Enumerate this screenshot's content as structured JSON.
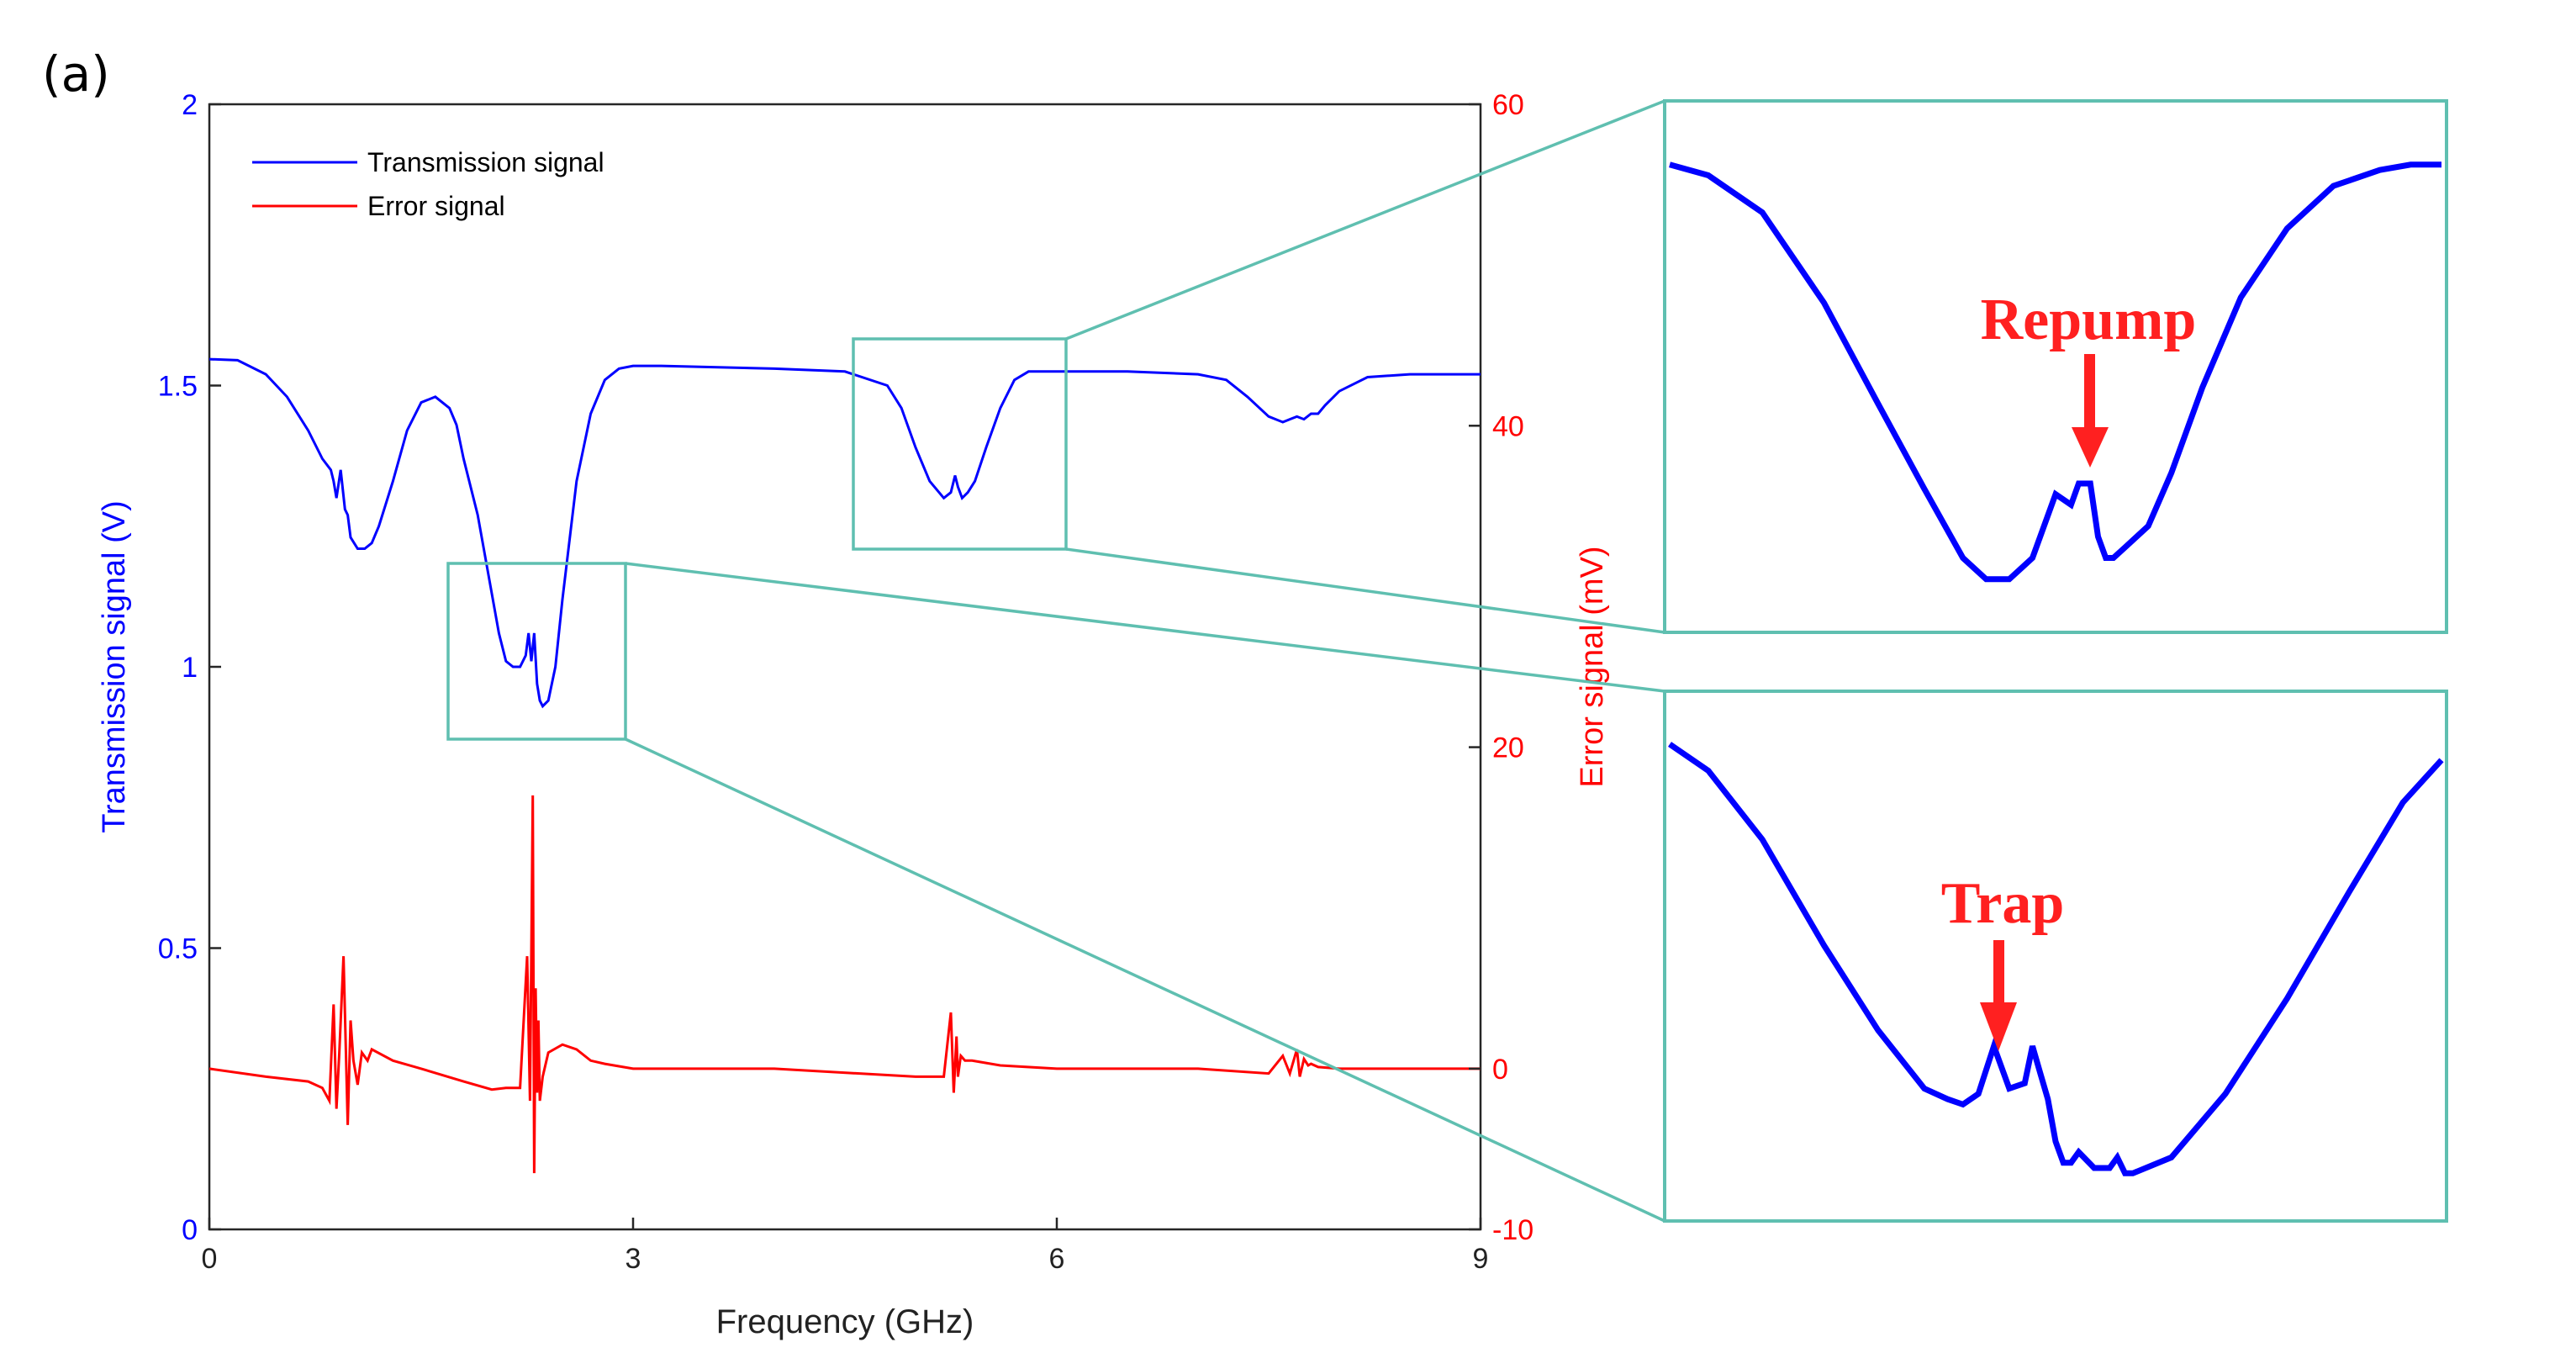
{
  "panel_label": "(a)",
  "colors": {
    "transmission": "#0000ff",
    "error": "#ff0000",
    "zoom_box": "#5fbfb0",
    "annotation": "#ff2020"
  },
  "chart_data": [
    {
      "type": "line",
      "xlabel": "Frequency (GHz)",
      "ylabel": "Transmission signal (V)",
      "ylabel_right": "Error signal (mV)",
      "xlim": [
        0,
        9
      ],
      "ylim": [
        0,
        2
      ],
      "ylim_right": [
        -10,
        60
      ],
      "x_ticks": [
        "0",
        "3",
        "6",
        "9"
      ],
      "y_ticks": [
        "0",
        "0.5",
        "1",
        "1.5",
        "2"
      ],
      "y_ticks_right": [
        "-10",
        "0",
        "20",
        "40",
        "60"
      ],
      "legend_position": "top-left",
      "grid": false,
      "series": [
        {
          "name": "Transmission signal",
          "axis": "left",
          "x": [
            0,
            0.2,
            0.4,
            0.55,
            0.7,
            0.8,
            0.86,
            0.88,
            0.9,
            0.93,
            0.96,
            0.98,
            1.0,
            1.05,
            1.1,
            1.15,
            1.2,
            1.3,
            1.4,
            1.5,
            1.6,
            1.7,
            1.75,
            1.8,
            1.9,
            2.0,
            2.05,
            2.1,
            2.15,
            2.2,
            2.24,
            2.26,
            2.28,
            2.3,
            2.32,
            2.34,
            2.36,
            2.4,
            2.45,
            2.5,
            2.6,
            2.7,
            2.8,
            2.9,
            3.0,
            3.2,
            4.0,
            4.5,
            4.8,
            4.9,
            5.0,
            5.1,
            5.2,
            5.25,
            5.28,
            5.3,
            5.33,
            5.37,
            5.42,
            5.5,
            5.6,
            5.7,
            5.8,
            5.9,
            6.0,
            6.5,
            7.0,
            7.2,
            7.35,
            7.5,
            7.6,
            7.65,
            7.7,
            7.75,
            7.8,
            7.85,
            7.9,
            8.0,
            8.2,
            8.5,
            9.0
          ],
          "values": [
            1.547,
            1.545,
            1.52,
            1.48,
            1.42,
            1.37,
            1.35,
            1.33,
            1.3,
            1.35,
            1.28,
            1.27,
            1.23,
            1.21,
            1.21,
            1.22,
            1.25,
            1.33,
            1.42,
            1.47,
            1.48,
            1.46,
            1.43,
            1.37,
            1.27,
            1.13,
            1.06,
            1.01,
            1.0,
            1.0,
            1.02,
            1.06,
            1.01,
            1.06,
            0.97,
            0.94,
            0.93,
            0.94,
            1.0,
            1.12,
            1.33,
            1.45,
            1.51,
            1.53,
            1.535,
            1.535,
            1.53,
            1.525,
            1.5,
            1.46,
            1.39,
            1.33,
            1.3,
            1.31,
            1.34,
            1.32,
            1.3,
            1.31,
            1.33,
            1.39,
            1.46,
            1.51,
            1.525,
            1.525,
            1.525,
            1.525,
            1.52,
            1.51,
            1.48,
            1.445,
            1.435,
            1.44,
            1.445,
            1.44,
            1.45,
            1.45,
            1.465,
            1.49,
            1.515,
            1.52,
            1.52
          ]
        },
        {
          "name": "Error signal",
          "axis": "right",
          "x": [
            0,
            0.4,
            0.7,
            0.8,
            0.85,
            0.88,
            0.9,
            0.92,
            0.95,
            0.98,
            1.0,
            1.02,
            1.05,
            1.08,
            1.12,
            1.15,
            1.3,
            1.5,
            1.8,
            2.0,
            2.1,
            2.2,
            2.25,
            2.27,
            2.29,
            2.3,
            2.31,
            2.32,
            2.33,
            2.34,
            2.36,
            2.4,
            2.5,
            2.6,
            2.7,
            2.8,
            3.0,
            4.0,
            5.0,
            5.2,
            5.25,
            5.27,
            5.29,
            5.3,
            5.32,
            5.35,
            5.4,
            5.6,
            6.0,
            7.0,
            7.5,
            7.6,
            7.65,
            7.7,
            7.72,
            7.75,
            7.78,
            7.8,
            7.85,
            8.0,
            9.0
          ],
          "values": [
            0,
            -0.5,
            -0.8,
            -1.2,
            -2,
            4,
            -2.5,
            1,
            7,
            -3.5,
            3,
            0.5,
            -1,
            1,
            0.5,
            1.2,
            0.5,
            0,
            -0.8,
            -1.3,
            -1.2,
            -1.2,
            7,
            -2,
            17,
            -6.5,
            5,
            -1.5,
            3,
            -2,
            -0.5,
            1,
            1.5,
            1.2,
            0.5,
            0.3,
            0,
            0,
            -0.5,
            -0.5,
            3.5,
            -1.5,
            2,
            -0.5,
            0.8,
            0.5,
            0.5,
            0.2,
            0,
            0,
            -0.3,
            0.8,
            -0.3,
            1.2,
            -0.5,
            0.6,
            0.2,
            0.3,
            0.1,
            0,
            0
          ]
        }
      ]
    },
    {
      "type": "line",
      "panel": "zoom-repump",
      "annotation": "Repump",
      "x": [
        0,
        0.05,
        0.12,
        0.2,
        0.27,
        0.33,
        0.38,
        0.41,
        0.44,
        0.47,
        0.5,
        0.52,
        0.53,
        0.545,
        0.555,
        0.565,
        0.575,
        0.59,
        0.62,
        0.65,
        0.69,
        0.74,
        0.8,
        0.86,
        0.92,
        0.96,
        1.0
      ],
      "values": [
        0.88,
        0.86,
        0.79,
        0.62,
        0.43,
        0.27,
        0.14,
        0.1,
        0.1,
        0.14,
        0.26,
        0.24,
        0.28,
        0.28,
        0.18,
        0.14,
        0.14,
        0.16,
        0.2,
        0.3,
        0.46,
        0.63,
        0.76,
        0.84,
        0.87,
        0.88,
        0.88
      ]
    },
    {
      "type": "line",
      "panel": "zoom-trap",
      "annotation": "Trap",
      "x": [
        0,
        0.05,
        0.12,
        0.2,
        0.27,
        0.33,
        0.36,
        0.38,
        0.4,
        0.42,
        0.44,
        0.46,
        0.47,
        0.48,
        0.49,
        0.5,
        0.51,
        0.52,
        0.53,
        0.55,
        0.57,
        0.58,
        0.59,
        0.6,
        0.65,
        0.72,
        0.8,
        0.88,
        0.95,
        1.0
      ],
      "values": [
        0.9,
        0.85,
        0.72,
        0.52,
        0.36,
        0.25,
        0.23,
        0.22,
        0.24,
        0.33,
        0.25,
        0.26,
        0.33,
        0.28,
        0.23,
        0.15,
        0.11,
        0.11,
        0.13,
        0.1,
        0.1,
        0.12,
        0.09,
        0.09,
        0.12,
        0.24,
        0.42,
        0.62,
        0.79,
        0.87
      ]
    }
  ]
}
